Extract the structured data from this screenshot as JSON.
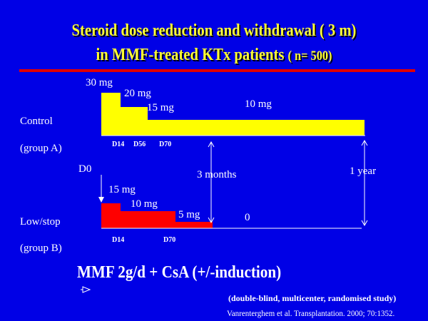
{
  "title": {
    "line1_main": "Steroid  dose reduction and withdrawal ",
    "line1_paren": "( 3 m)",
    "line2_main": "in MMF-treated KTx patients ",
    "line2_paren": "( n= 500)"
  },
  "colors": {
    "background": "#0000e6",
    "title": "#ffff33",
    "divider": "#e00000",
    "control_bar": "#ffff00",
    "lowstop_bar": "#ff0000",
    "text": "#ffffff"
  },
  "control": {
    "label": "Control",
    "group": "(group A)",
    "doses": [
      "30 mg",
      "20 mg",
      "15 mg",
      "10 mg"
    ],
    "days": [
      "D14",
      "D56",
      "D70"
    ]
  },
  "lowstop": {
    "label": "Low/stop",
    "group": "(group B)",
    "doses": [
      "15 mg",
      "10 mg",
      "5 mg",
      "0"
    ],
    "days": [
      "D14",
      "D70"
    ]
  },
  "timeline": {
    "start": "D0",
    "mid": "3 months",
    "end": "1 year"
  },
  "bottom": {
    "regimen": "MMF 2g/d + CsA (+/-induction)",
    "note": "(double-blind, multicenter, randomised study)",
    "citation": "Vanrenterghem et al. Transplantation. 2000; 70:1352."
  }
}
